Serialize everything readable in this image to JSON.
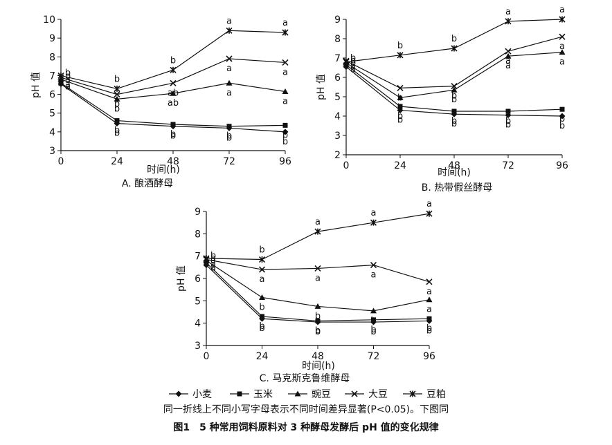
{
  "chart_data": [
    {
      "type": "line",
      "id": "A",
      "title": "A. 酿酒酵母",
      "xlabel": "时间(h)",
      "ylabel": "pH 值",
      "x": [
        0,
        24,
        48,
        72,
        96
      ],
      "xticks": [
        "0",
        "24",
        "48",
        "72",
        "96"
      ],
      "ylim": [
        3,
        10
      ],
      "yticks": [
        "3",
        "4",
        "5",
        "6",
        "7",
        "8",
        "9",
        "10"
      ],
      "series": [
        {
          "name": "小麦",
          "marker": "diamond",
          "values": [
            6.55,
            4.45,
            4.3,
            4.2,
            4.0
          ],
          "labels": [
            "a",
            "b",
            "b",
            "b",
            "b"
          ]
        },
        {
          "name": "玉米",
          "marker": "square",
          "values": [
            6.6,
            4.6,
            4.4,
            4.3,
            4.35
          ],
          "labels": [
            "a",
            "b",
            "b",
            "b",
            "b"
          ]
        },
        {
          "name": "豌豆",
          "marker": "triangle",
          "values": [
            6.8,
            5.75,
            6.05,
            6.6,
            6.15
          ],
          "labels": [
            "a",
            "b",
            "ab",
            "a",
            "a"
          ]
        },
        {
          "name": "大豆",
          "marker": "x",
          "values": [
            6.9,
            6.0,
            6.6,
            7.9,
            7.7
          ],
          "labels": [
            "b",
            "b",
            "ab",
            "a",
            "a"
          ]
        },
        {
          "name": "豆粕",
          "marker": "star",
          "values": [
            7.0,
            6.3,
            7.3,
            9.4,
            9.3
          ],
          "labels": [
            "b",
            "b",
            "b",
            "a",
            "a"
          ]
        }
      ]
    },
    {
      "type": "line",
      "id": "B",
      "title": "B. 热带假丝酵母",
      "xlabel": "时间(h)",
      "ylabel": "pH 值",
      "x": [
        0,
        24,
        48,
        72,
        96
      ],
      "xticks": [
        "0",
        "24",
        "48",
        "72",
        "96"
      ],
      "ylim": [
        2,
        9
      ],
      "yticks": [
        "2",
        "3",
        "4",
        "5",
        "6",
        "7",
        "8",
        "9"
      ],
      "series": [
        {
          "name": "小麦",
          "marker": "diamond",
          "values": [
            6.55,
            4.3,
            4.1,
            4.05,
            4.0
          ],
          "labels": [
            "a",
            "b",
            "b",
            "b",
            "b"
          ]
        },
        {
          "name": "玉米",
          "marker": "square",
          "values": [
            6.65,
            4.5,
            4.25,
            4.25,
            4.35
          ],
          "labels": [
            "a",
            "b",
            "b",
            "b",
            "b"
          ]
        },
        {
          "name": "豌豆",
          "marker": "triangle",
          "values": [
            6.75,
            4.95,
            5.35,
            7.1,
            7.3
          ],
          "labels": [
            "b",
            "b",
            "b",
            "a",
            "a"
          ]
        },
        {
          "name": "大豆",
          "marker": "x",
          "values": [
            6.85,
            5.45,
            5.55,
            7.35,
            8.1
          ],
          "labels": [
            "b",
            "b",
            "b",
            "a",
            "a"
          ]
        },
        {
          "name": "豆粕",
          "marker": "star",
          "values": [
            6.8,
            7.15,
            7.5,
            8.9,
            9.0
          ],
          "labels": [
            "b",
            "b",
            "b",
            "a",
            "a"
          ]
        }
      ]
    },
    {
      "type": "line",
      "id": "C",
      "title": "C. 马克斯克鲁维酵母",
      "xlabel": "时间(h)",
      "ylabel": "pH 值",
      "x": [
        0,
        24,
        48,
        72,
        96
      ],
      "xticks": [
        "0",
        "24",
        "48",
        "72",
        "96"
      ],
      "ylim": [
        3,
        9
      ],
      "yticks": [
        "3",
        "4",
        "5",
        "6",
        "7",
        "8",
        "9"
      ],
      "series": [
        {
          "name": "小麦",
          "marker": "diamond",
          "values": [
            6.6,
            4.2,
            4.05,
            4.05,
            4.1
          ],
          "labels": [
            "a",
            "b",
            "b",
            "b",
            "b"
          ]
        },
        {
          "name": "玉米",
          "marker": "square",
          "values": [
            6.7,
            4.3,
            4.1,
            4.15,
            4.2
          ],
          "labels": [
            "a",
            "b",
            "b",
            "b",
            "b"
          ]
        },
        {
          "name": "豌豆",
          "marker": "triangle",
          "values": [
            6.8,
            5.15,
            4.75,
            4.55,
            5.05
          ],
          "labels": [
            "a",
            "b",
            "b",
            "b",
            "a"
          ]
        },
        {
          "name": "大豆",
          "marker": "x",
          "values": [
            6.85,
            6.4,
            6.45,
            6.6,
            5.85
          ],
          "labels": [
            "a",
            "a",
            "a",
            "a",
            "a"
          ]
        },
        {
          "name": "豆粕",
          "marker": "star",
          "values": [
            6.9,
            6.85,
            8.1,
            8.5,
            8.9
          ],
          "labels": [
            "b",
            "b",
            "a",
            "a",
            "a"
          ]
        }
      ]
    }
  ],
  "legend": [
    {
      "name": "小麦",
      "marker": "diamond"
    },
    {
      "name": "玉米",
      "marker": "square"
    },
    {
      "name": "豌豆",
      "marker": "triangle"
    },
    {
      "name": "大豆",
      "marker": "x"
    },
    {
      "name": "豆粕",
      "marker": "star"
    }
  ],
  "note": "同一折线上不同小写字母表示不同时间差异显著(P<0.05)。下图同",
  "caption": "图1　5 种常用饲料原料对 3 种酵母发酵后 pH 值的变化规律"
}
